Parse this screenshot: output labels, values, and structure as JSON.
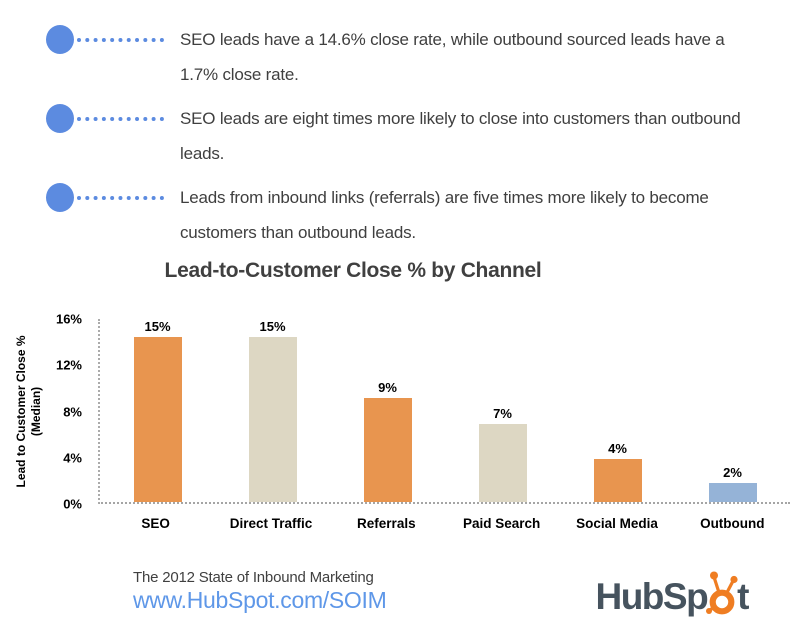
{
  "bullets": {
    "marker_color": "#5C8BE0",
    "items": [
      {
        "lines": [
          "SEO leads have a 14.6% close rate, while outbound sourced leads have a",
          "1.7% close rate."
        ]
      },
      {
        "lines": [
          "SEO leads are eight times more likely to close into customers than outbound",
          "leads."
        ]
      },
      {
        "lines": [
          "Leads from inbound links (referrals) are five times more likely to become",
          "customers than outbound leads."
        ]
      }
    ]
  },
  "chart_data": {
    "type": "bar",
    "title": "Lead-to-Customer Close % by Channel",
    "categories": [
      "SEO",
      "Direct Traffic",
      "Referrals",
      "Paid Search",
      "Social Media",
      "Outbound"
    ],
    "values": [
      14.6,
      14.6,
      9.1,
      6.8,
      3.8,
      1.7
    ],
    "value_labels": [
      "15%",
      "15%",
      "9%",
      "7%",
      "4%",
      "2%"
    ],
    "bar_colors": [
      "#E8954F",
      "#DDD7C3",
      "#E8954F",
      "#DDD7C3",
      "#E8954F",
      "#95B3D7"
    ],
    "ylabel_lines": [
      "Lead to Customer Close %",
      "(Median)"
    ],
    "yticks": [
      "16%",
      "12%",
      "8%",
      "4%",
      "0%"
    ],
    "ylim": [
      0,
      16
    ],
    "grid": false,
    "legend": false
  },
  "footer": {
    "source": "The 2012 State of Inbound Marketing",
    "url": "www.HubSpot.com/SOIM",
    "logo": {
      "name": "HubSpot",
      "prefix": "HubSp",
      "suffix": "t"
    }
  },
  "colors": {
    "bullet_blue": "#5C8BE0",
    "bar_orange": "#E8954F",
    "bar_beige": "#DDD7C3",
    "bar_blue": "#95B3D7",
    "url_blue": "#5E97E8",
    "logo_slate": "#46535E",
    "logo_orange": "#EF7D22",
    "body_text": "#3F3F3F"
  }
}
